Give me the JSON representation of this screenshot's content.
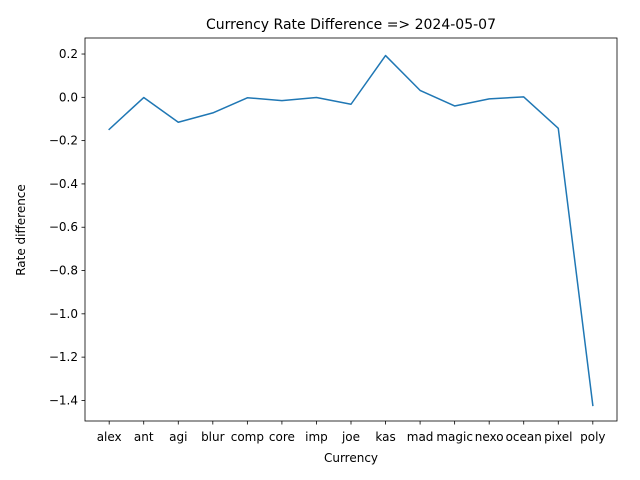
{
  "chart_data": {
    "type": "line",
    "title": "Currency Rate Difference => 2024-05-07",
    "xlabel": "Currency",
    "ylabel": "Rate difference",
    "categories": [
      "alex",
      "ant",
      "agi",
      "blur",
      "comp",
      "core",
      "imp",
      "joe",
      "kas",
      "mad",
      "magic",
      "nexo",
      "ocean",
      "pixel",
      "poly"
    ],
    "series": [
      {
        "color": "#1f77b4",
        "values": [
          -0.148,
          -0.001,
          -0.115,
          -0.072,
          -0.002,
          -0.015,
          -0.001,
          -0.032,
          0.193,
          0.032,
          -0.04,
          -0.007,
          0.002,
          -0.143,
          -1.423
        ]
      }
    ],
    "ylim": [
      -1.495,
      0.274
    ],
    "yticks": [
      0.2,
      0.0,
      -0.2,
      -0.4,
      -0.6,
      -0.8,
      -1.0,
      -1.2,
      -1.4
    ],
    "ytick_labels": [
      "0.2",
      "0.0",
      "−0.2",
      "−0.4",
      "−0.6",
      "−0.8",
      "−1.0",
      "−1.2",
      "−1.4"
    ],
    "grid": false,
    "legend": "none"
  }
}
